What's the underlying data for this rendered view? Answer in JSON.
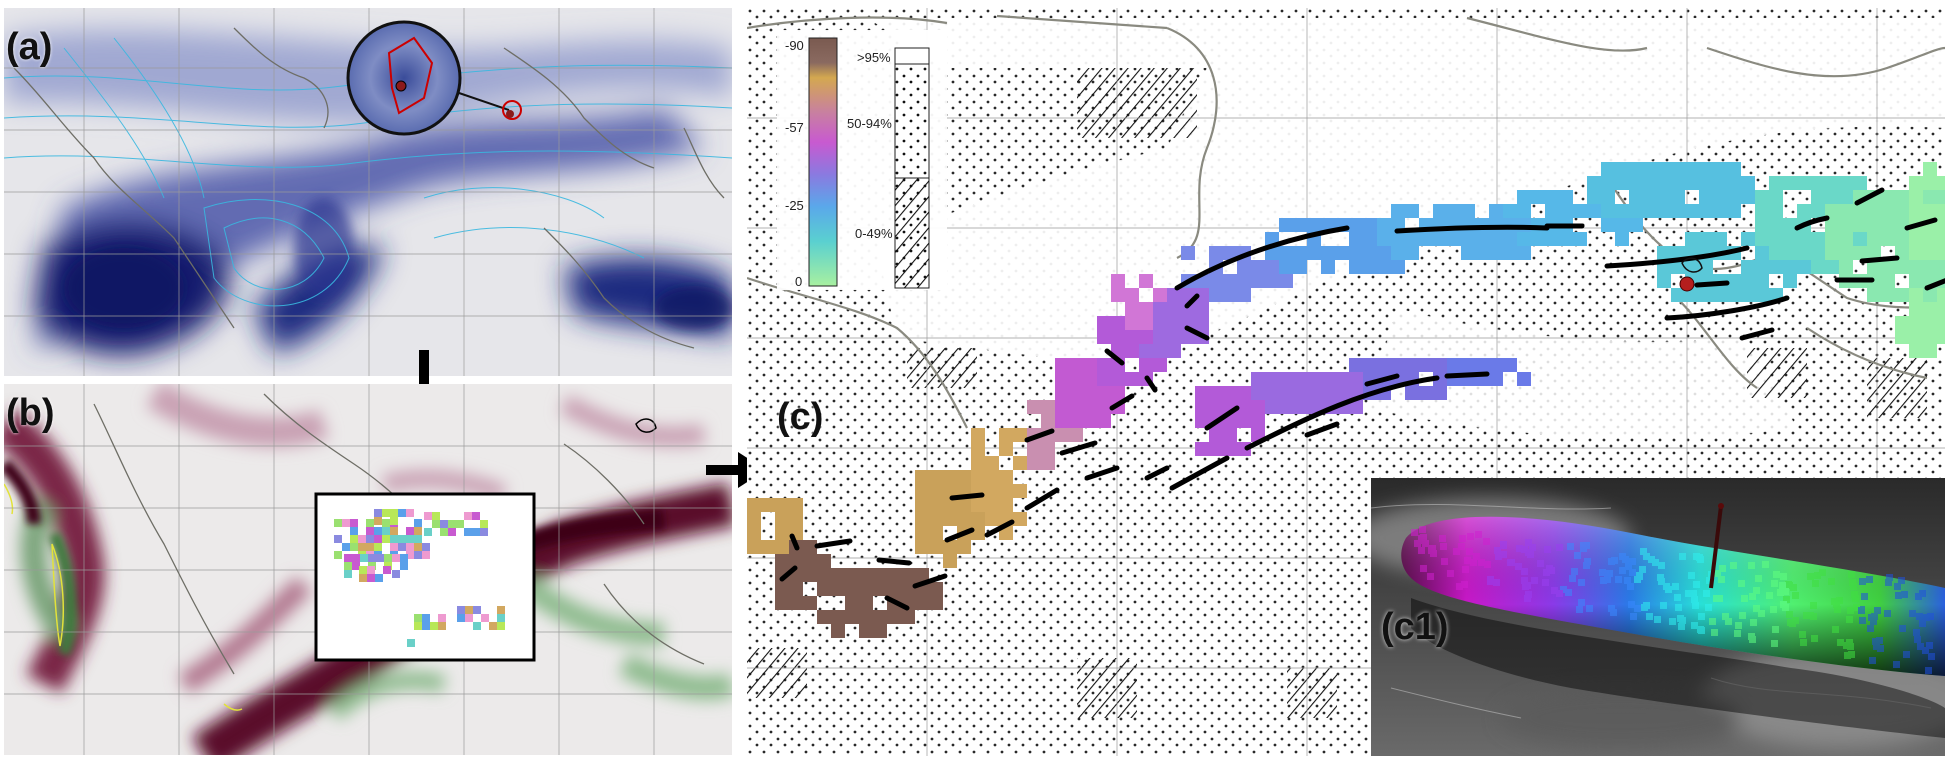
{
  "panels": {
    "a": {
      "label": "(a)"
    },
    "b": {
      "label": "(b)"
    },
    "c": {
      "label": "(c)"
    },
    "c1": {
      "label": "(c1)"
    }
  },
  "legend": {
    "ticks": [
      "-90",
      "-57",
      "-25",
      "0"
    ],
    "pattern_labels": [
      ">95%",
      "50-94%",
      "0-49%"
    ]
  },
  "colors": {
    "blue_field": "#1a237e",
    "red_field": "#6d0f2e",
    "green_field": "#5c9a5c",
    "coast": "#8a8a80",
    "cyan_contour": "#39b8e0"
  },
  "icons": [
    "arrow-down-icon",
    "arrow-right-icon",
    "magnifier-circle-icon",
    "location-marker-icon"
  ]
}
